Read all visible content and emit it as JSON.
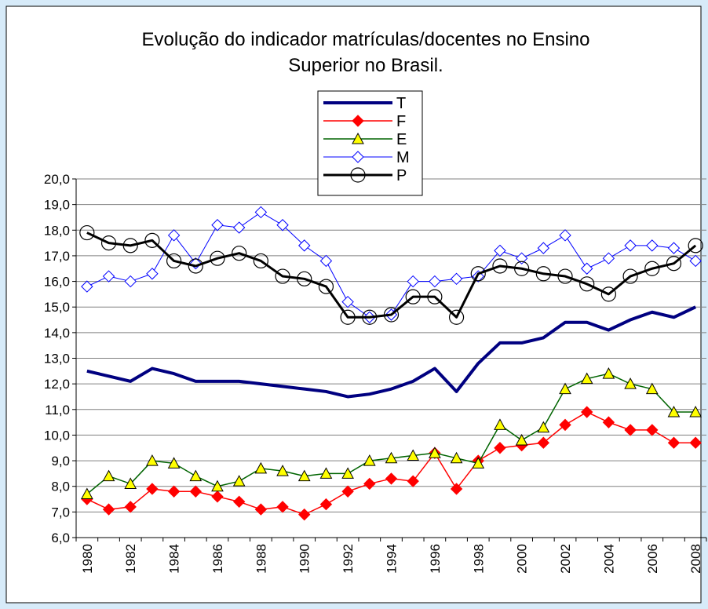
{
  "chart_data": {
    "type": "line",
    "title": [
      "Evolução do indicador matrículas/docentes no Ensino",
      "Superior no Brasil."
    ],
    "categories": [
      "1980",
      null,
      "1982",
      null,
      "1984",
      null,
      "1986",
      null,
      "1988",
      null,
      "1990",
      null,
      "1992",
      null,
      "1994",
      null,
      "1996",
      null,
      "1998",
      null,
      "2000",
      null,
      "2002",
      null,
      "2004",
      null,
      "2006",
      null,
      "2008"
    ],
    "ylim": [
      6,
      20
    ],
    "yticks": [
      {
        "value": 6,
        "label": "6,0"
      },
      {
        "value": 7,
        "label": "7,0"
      },
      {
        "value": 8,
        "label": "8,0"
      },
      {
        "value": 9,
        "label": "9,0"
      },
      {
        "value": 10,
        "label": "10,0"
      },
      {
        "value": 11,
        "label": "11,0"
      },
      {
        "value": 12,
        "label": "12,0"
      },
      {
        "value": 13,
        "label": "13,0"
      },
      {
        "value": 14,
        "label": "14,0"
      },
      {
        "value": 15,
        "label": "15,0"
      },
      {
        "value": 16,
        "label": "16,0"
      },
      {
        "value": 17,
        "label": "17,0"
      },
      {
        "value": 18,
        "label": "18,0"
      },
      {
        "value": 19,
        "label": "19,0"
      },
      {
        "value": 20,
        "label": "20,0"
      }
    ],
    "grid": true,
    "series": [
      {
        "name": "T",
        "color": "#000080",
        "line_width": 4,
        "marker": "none",
        "values": [
          12.5,
          12.3,
          12.1,
          12.6,
          12.4,
          12.1,
          12.1,
          12.1,
          12.0,
          11.9,
          11.8,
          11.7,
          11.5,
          11.6,
          11.8,
          12.1,
          12.6,
          11.7,
          12.8,
          13.6,
          13.6,
          13.8,
          14.4,
          14.4,
          14.1,
          14.5,
          14.8,
          14.6,
          15.0
        ]
      },
      {
        "name": "F",
        "color": "#ff0000",
        "line_width": 1.5,
        "marker": "diamond",
        "marker_fill": "#ff0000",
        "values": [
          7.5,
          7.1,
          7.2,
          7.9,
          7.8,
          7.8,
          7.6,
          7.4,
          7.1,
          7.2,
          6.9,
          7.3,
          7.8,
          8.1,
          8.3,
          8.2,
          9.3,
          7.9,
          9.0,
          9.5,
          9.6,
          9.7,
          10.4,
          10.9,
          10.5,
          10.2,
          10.2,
          9.7,
          9.7
        ]
      },
      {
        "name": "E",
        "color": "#006400",
        "line_width": 1.5,
        "marker": "triangle",
        "marker_fill": "#ffff00",
        "values": [
          7.7,
          8.4,
          8.1,
          9.0,
          8.9,
          8.4,
          8.0,
          8.2,
          8.7,
          8.6,
          8.4,
          8.5,
          8.5,
          9.0,
          9.1,
          9.2,
          9.3,
          9.1,
          8.9,
          10.4,
          9.8,
          10.3,
          11.8,
          12.2,
          12.4,
          12.0,
          11.8,
          10.9,
          10.9
        ]
      },
      {
        "name": "M",
        "color": "#0000ff",
        "line_width": 1,
        "marker": "diamond",
        "marker_fill": "#ffffff",
        "values": [
          15.8,
          16.2,
          16.0,
          16.3,
          17.8,
          16.7,
          18.2,
          18.1,
          18.7,
          18.2,
          17.4,
          16.8,
          15.2,
          14.6,
          14.7,
          16.0,
          16.0,
          16.1,
          16.2,
          17.2,
          16.9,
          17.3,
          17.8,
          16.5,
          16.9,
          17.4,
          17.4,
          17.3,
          16.8
        ]
      },
      {
        "name": "P",
        "color": "#000000",
        "line_width": 3,
        "marker": "circle",
        "marker_fill": "none",
        "values": [
          17.9,
          17.5,
          17.4,
          17.6,
          16.8,
          16.6,
          16.9,
          17.1,
          16.8,
          16.2,
          16.1,
          15.8,
          14.6,
          14.6,
          14.7,
          15.4,
          15.4,
          14.6,
          16.3,
          16.6,
          16.5,
          16.3,
          16.2,
          15.9,
          15.5,
          16.2,
          16.5,
          16.7,
          17.4
        ]
      }
    ]
  }
}
